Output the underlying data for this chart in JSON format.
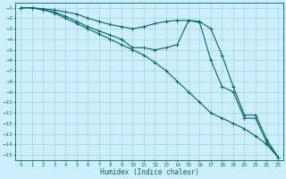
{
  "xlabel": "Humidex (Indice chaleur)",
  "background_color": "#cceeff",
  "grid_color": "#99cccc",
  "line_color": "#006666",
  "xlim": [
    -0.5,
    23.5
  ],
  "ylim": [
    -15.5,
    -0.5
  ],
  "xticks": [
    0,
    1,
    2,
    3,
    4,
    5,
    6,
    7,
    8,
    9,
    10,
    11,
    12,
    13,
    14,
    15,
    16,
    17,
    18,
    19,
    20,
    21,
    22,
    23
  ],
  "yticks": [
    -1,
    -2,
    -3,
    -4,
    -5,
    -6,
    -7,
    -8,
    -9,
    -10,
    -11,
    -12,
    -13,
    -14,
    -15
  ],
  "series": [
    {
      "x": [
        0,
        1,
        2,
        3,
        4,
        5,
        6,
        7,
        8,
        9,
        10,
        11,
        12,
        13,
        14,
        15,
        16,
        17,
        18,
        19,
        20,
        21,
        22,
        23
      ],
      "y": [
        -1,
        -1,
        -1.1,
        -1.2,
        -1.4,
        -1.6,
        -2.0,
        -2.3,
        -2.6,
        -2.8,
        -3.0,
        -2.8,
        -2.5,
        -2.3,
        -2.2,
        -2.2,
        -2.3,
        -3.0,
        -5.5,
        -8.5,
        -11.2,
        -11.2,
        -13.5,
        -15.2
      ]
    },
    {
      "x": [
        0,
        1,
        2,
        3,
        4,
        5,
        6,
        7,
        8,
        9,
        10,
        11,
        12,
        13,
        14,
        15,
        16,
        17,
        18,
        19,
        20,
        21,
        22,
        23
      ],
      "y": [
        -1,
        -1,
        -1.2,
        -1.4,
        -1.8,
        -2.3,
        -2.8,
        -3.2,
        -3.6,
        -4.0,
        -4.8,
        -4.8,
        -5.0,
        -4.8,
        -4.5,
        -2.2,
        -2.4,
        -6.0,
        -8.5,
        -9.0,
        -11.5,
        -11.5,
        -13.8,
        -15.2
      ]
    },
    {
      "x": [
        0,
        1,
        2,
        3,
        4,
        5,
        6,
        7,
        8,
        9,
        10,
        11,
        12,
        13,
        14,
        15,
        16,
        17,
        18,
        19,
        20,
        21,
        22,
        23
      ],
      "y": [
        -1,
        -1,
        -1.2,
        -1.5,
        -2.0,
        -2.5,
        -3.0,
        -3.5,
        -4.0,
        -4.5,
        -5.0,
        -5.5,
        -6.2,
        -7.0,
        -8.0,
        -9.0,
        -10.0,
        -11.0,
        -11.5,
        -12.0,
        -12.5,
        -13.2,
        -14.0,
        -15.2
      ]
    }
  ]
}
